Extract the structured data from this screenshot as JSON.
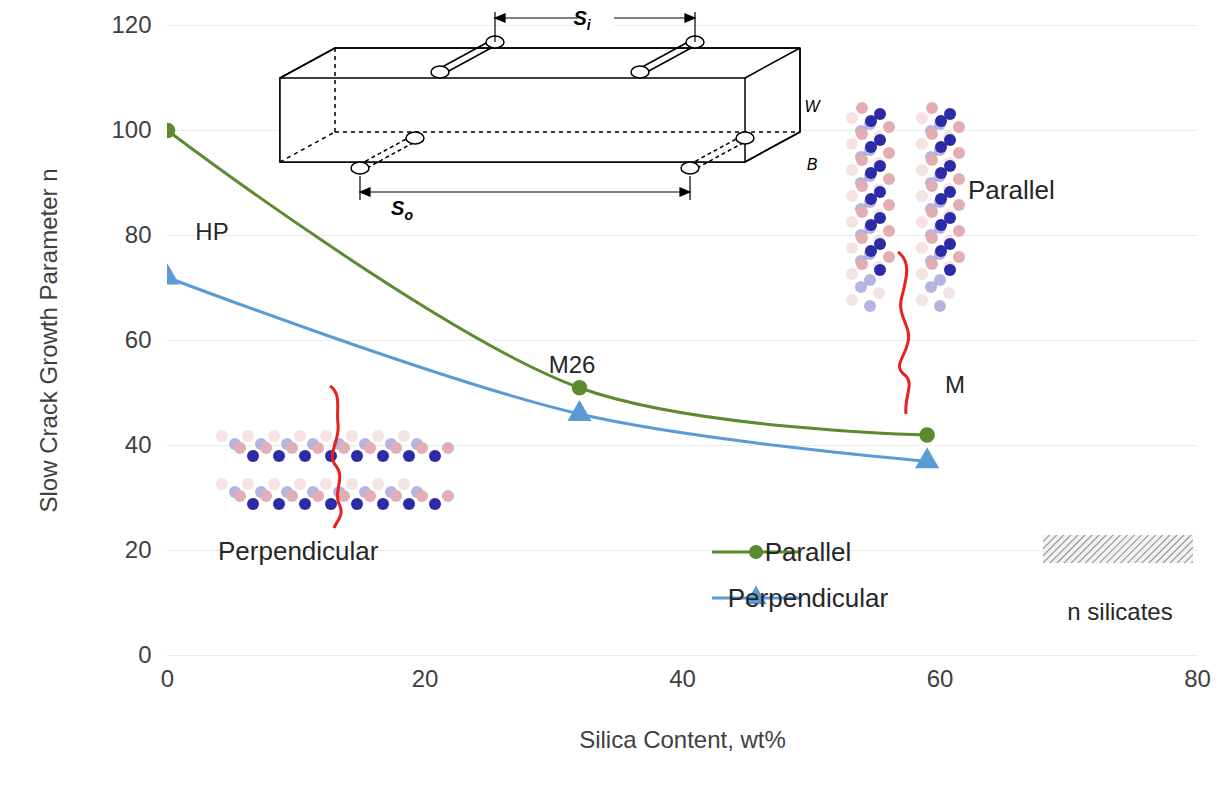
{
  "chart_data": {
    "type": "line",
    "x_label": "Silica Content, wt%",
    "y_label": "Slow Crack Growth Parameter n",
    "x": [
      0,
      32,
      59
    ],
    "series": [
      {
        "name": "Parallel",
        "color": "#5b8a2f",
        "marker": "circle",
        "line_style": "solid",
        "values": [
          100,
          51,
          42
        ]
      },
      {
        "name": "Perpendicular",
        "color": "#5b9bd5",
        "marker": "triangle",
        "line_style": "solid",
        "values": [
          72,
          46,
          37
        ]
      }
    ],
    "xlim": [
      0,
      80
    ],
    "ylim": [
      0,
      120
    ],
    "xticks": [
      0,
      20,
      40,
      60,
      80
    ],
    "yticks": [
      0,
      20,
      40,
      60,
      80,
      100,
      120
    ],
    "grid": "y",
    "legend": "lower center",
    "annotations": [
      "HP",
      "M26",
      "M",
      "Parallel",
      "Perpendicular",
      "n silicates"
    ],
    "diagram_labels": [
      "Si",
      "So",
      "W",
      "B"
    ]
  }
}
